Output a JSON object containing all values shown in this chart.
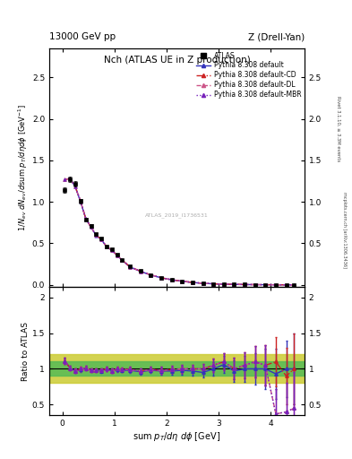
{
  "title_top": "13000 GeV pp",
  "title_right": "Z (Drell-Yan)",
  "plot_title": "Nch (ATLAS UE in Z production)",
  "ylabel_main": "$1/N_{ev}$ $dN_{ev}/d$sum $p_T/d\\eta$ $d\\phi$  [GeV$^{-1}$]",
  "ylabel_ratio": "Ratio to ATLAS",
  "xlabel": "sum $p_T/d\\eta$ $d\\phi$ [GeV]",
  "rivet_label": "Rivet 3.1.10, ≥ 3.3M events",
  "mcplots_label": "mcplots.cern.ch [arXiv:1306.3436]",
  "watermark": "ATLAS_2019_I1736531",
  "xlim": [
    -0.25,
    4.65
  ],
  "ylim_main": [
    -0.02,
    2.85
  ],
  "ylim_ratio": [
    0.35,
    2.15
  ],
  "atlas_x": [
    0.05,
    0.15,
    0.25,
    0.35,
    0.45,
    0.55,
    0.65,
    0.75,
    0.85,
    0.95,
    1.05,
    1.15,
    1.3,
    1.5,
    1.7,
    1.9,
    2.1,
    2.3,
    2.5,
    2.7,
    2.9,
    3.1,
    3.3,
    3.5,
    3.7,
    3.9,
    4.1,
    4.3,
    4.45
  ],
  "atlas_y": [
    1.14,
    1.27,
    1.22,
    1.01,
    0.79,
    0.71,
    0.61,
    0.56,
    0.46,
    0.43,
    0.36,
    0.3,
    0.22,
    0.17,
    0.12,
    0.088,
    0.063,
    0.044,
    0.03,
    0.02,
    0.013,
    0.008,
    0.006,
    0.004,
    0.003,
    0.002,
    0.0015,
    0.001,
    0.0008
  ],
  "atlas_yerr": [
    0.03,
    0.03,
    0.03,
    0.025,
    0.02,
    0.018,
    0.015,
    0.013,
    0.011,
    0.01,
    0.009,
    0.007,
    0.006,
    0.005,
    0.004,
    0.003,
    0.002,
    0.002,
    0.001,
    0.001,
    0.001,
    0.0005,
    0.0004,
    0.0003,
    0.0003,
    0.0002,
    0.0002,
    0.0001,
    0.0001
  ],
  "py_x": [
    0.05,
    0.15,
    0.25,
    0.35,
    0.45,
    0.55,
    0.65,
    0.75,
    0.85,
    0.95,
    1.05,
    1.15,
    1.3,
    1.5,
    1.7,
    1.9,
    2.1,
    2.3,
    2.5,
    2.7,
    2.9,
    3.1,
    3.3,
    3.5,
    3.7,
    3.9,
    4.1,
    4.3,
    4.45
  ],
  "py_def_y": [
    1.27,
    1.28,
    1.18,
    1.0,
    0.8,
    0.695,
    0.595,
    0.545,
    0.458,
    0.415,
    0.355,
    0.295,
    0.215,
    0.163,
    0.118,
    0.085,
    0.061,
    0.043,
    0.029,
    0.019,
    0.013,
    0.0085,
    0.0058,
    0.004,
    0.003,
    0.002,
    0.0014,
    0.001,
    0.0008
  ],
  "py_cd_y": [
    1.27,
    1.28,
    1.18,
    1.01,
    0.8,
    0.695,
    0.598,
    0.548,
    0.46,
    0.418,
    0.358,
    0.298,
    0.218,
    0.165,
    0.12,
    0.086,
    0.062,
    0.044,
    0.03,
    0.02,
    0.013,
    0.0088,
    0.006,
    0.0042,
    0.0031,
    0.0021,
    0.0015,
    0.001,
    0.0008
  ],
  "py_dl_y": [
    1.27,
    1.28,
    1.18,
    1.01,
    0.8,
    0.695,
    0.598,
    0.548,
    0.46,
    0.418,
    0.358,
    0.298,
    0.218,
    0.165,
    0.12,
    0.086,
    0.062,
    0.044,
    0.03,
    0.02,
    0.013,
    0.0088,
    0.006,
    0.0042,
    0.0031,
    0.0021,
    0.0015,
    0.001,
    0.0008
  ],
  "py_mbr_y": [
    1.27,
    1.28,
    1.18,
    1.01,
    0.8,
    0.695,
    0.598,
    0.548,
    0.46,
    0.418,
    0.358,
    0.298,
    0.218,
    0.165,
    0.12,
    0.086,
    0.062,
    0.044,
    0.03,
    0.02,
    0.013,
    0.0088,
    0.006,
    0.0042,
    0.0031,
    0.0021,
    0.0015,
    0.001,
    0.0008
  ],
  "ratio_x": [
    0.05,
    0.15,
    0.25,
    0.35,
    0.45,
    0.55,
    0.65,
    0.75,
    0.85,
    0.95,
    1.05,
    1.15,
    1.3,
    1.5,
    1.7,
    1.9,
    2.1,
    2.3,
    2.5,
    2.7,
    2.9,
    3.1,
    3.3,
    3.5,
    3.7,
    3.9,
    4.1,
    4.3,
    4.45
  ],
  "ratio_def_y": [
    1.11,
    1.01,
    0.97,
    0.99,
    1.01,
    0.98,
    0.98,
    0.97,
    1.0,
    0.97,
    0.99,
    0.98,
    0.98,
    0.96,
    0.98,
    0.97,
    0.97,
    0.98,
    0.97,
    0.95,
    1.0,
    1.06,
    0.97,
    1.0,
    1.0,
    1.0,
    0.93,
    1.0,
    1.0
  ],
  "ratio_def_yerr": [
    0.04,
    0.03,
    0.03,
    0.03,
    0.03,
    0.03,
    0.03,
    0.03,
    0.03,
    0.03,
    0.03,
    0.03,
    0.04,
    0.04,
    0.04,
    0.05,
    0.05,
    0.06,
    0.06,
    0.07,
    0.09,
    0.12,
    0.15,
    0.18,
    0.22,
    0.28,
    0.35,
    0.4,
    0.5
  ],
  "ratio_cd_y": [
    1.11,
    1.01,
    0.97,
    1.0,
    1.01,
    0.98,
    0.98,
    0.98,
    1.0,
    0.97,
    1.0,
    0.99,
    0.99,
    0.97,
    0.99,
    0.98,
    0.99,
    1.0,
    1.0,
    1.0,
    1.05,
    1.1,
    1.0,
    1.05,
    1.1,
    1.05,
    1.1,
    0.9,
    1.0
  ],
  "ratio_dl_y": [
    1.11,
    1.01,
    0.97,
    1.0,
    1.01,
    0.98,
    0.98,
    0.98,
    1.0,
    0.97,
    1.0,
    0.99,
    0.99,
    0.97,
    0.99,
    0.98,
    0.99,
    1.0,
    1.0,
    1.0,
    1.05,
    1.1,
    1.0,
    1.05,
    1.1,
    1.05,
    0.37,
    0.4,
    0.45
  ],
  "ratio_mbr_y": [
    1.11,
    1.01,
    0.97,
    1.0,
    1.01,
    0.98,
    0.98,
    0.98,
    1.0,
    0.97,
    1.0,
    0.99,
    0.99,
    0.97,
    0.99,
    0.98,
    0.99,
    1.0,
    1.0,
    1.0,
    1.05,
    1.1,
    1.0,
    1.05,
    1.1,
    1.05,
    0.37,
    0.4,
    0.45
  ],
  "ratio_cd_yerr": [
    0.04,
    0.03,
    0.03,
    0.03,
    0.03,
    0.03,
    0.03,
    0.03,
    0.03,
    0.03,
    0.03,
    0.03,
    0.04,
    0.04,
    0.04,
    0.05,
    0.05,
    0.06,
    0.06,
    0.07,
    0.09,
    0.12,
    0.15,
    0.18,
    0.22,
    0.28,
    0.35,
    0.4,
    0.5
  ],
  "ratio_dl_yerr": [
    0.04,
    0.03,
    0.03,
    0.03,
    0.03,
    0.03,
    0.03,
    0.03,
    0.03,
    0.03,
    0.03,
    0.03,
    0.04,
    0.04,
    0.04,
    0.05,
    0.05,
    0.06,
    0.06,
    0.07,
    0.09,
    0.12,
    0.15,
    0.18,
    0.22,
    0.28,
    0.35,
    0.4,
    0.5
  ],
  "ratio_mbr_yerr": [
    0.04,
    0.03,
    0.03,
    0.03,
    0.03,
    0.03,
    0.03,
    0.03,
    0.03,
    0.03,
    0.03,
    0.03,
    0.04,
    0.04,
    0.04,
    0.05,
    0.05,
    0.06,
    0.06,
    0.07,
    0.09,
    0.12,
    0.15,
    0.18,
    0.22,
    0.28,
    0.35,
    0.4,
    0.5
  ],
  "green_band_lo": 0.9,
  "green_band_hi": 1.1,
  "yellow_band_lo": 0.8,
  "yellow_band_hi": 1.2,
  "color_default": "#3333bb",
  "color_cd": "#cc2222",
  "color_dl": "#cc5588",
  "color_mbr": "#7722bb",
  "color_atlas": "#000000",
  "color_green": "#55bb55",
  "color_yellow": "#cccc33",
  "yticks_main": [
    0.0,
    0.5,
    1.0,
    1.5,
    2.0,
    2.5
  ],
  "yticks_ratio": [
    0.5,
    1.0,
    1.5,
    2.0
  ],
  "xticks": [
    0,
    1,
    2,
    3,
    4
  ]
}
